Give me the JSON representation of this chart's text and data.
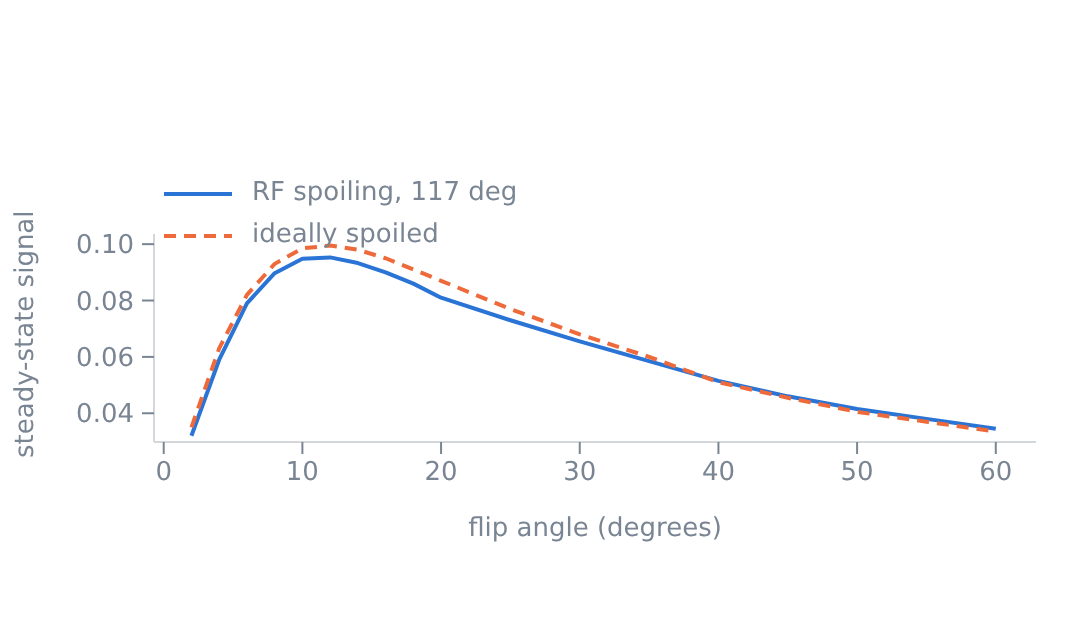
{
  "chart_data": {
    "type": "line",
    "xlabel": "flip angle (degrees)",
    "ylabel": "steady-state signal",
    "x": [
      2,
      4,
      6,
      8,
      10,
      12,
      14,
      16,
      18,
      20,
      25,
      30,
      35,
      40,
      45,
      50,
      55,
      60
    ],
    "series": [
      {
        "name": "RF spoiling, 117 deg",
        "color": "#2a74d6",
        "line_style": "solid",
        "values": [
          0.032,
          0.059,
          0.079,
          0.0897,
          0.0948,
          0.0953,
          0.0933,
          0.09,
          0.086,
          0.081,
          0.073,
          0.0655,
          0.0585,
          0.0515,
          0.046,
          0.0415,
          0.038,
          0.0345
        ]
      },
      {
        "name": "ideally spoiled",
        "color": "#ef6a3a",
        "line_style": "dashed",
        "values": [
          0.035,
          0.063,
          0.082,
          0.093,
          0.0985,
          0.0995,
          0.098,
          0.095,
          0.091,
          0.087,
          0.077,
          0.068,
          0.06,
          0.051,
          0.0455,
          0.0405,
          0.037,
          0.0335
        ]
      }
    ],
    "xlim": [
      -0.7,
      62.9
    ],
    "xticks": [
      0,
      10,
      20,
      30,
      40,
      50,
      60
    ],
    "ylim": [
      0.0298,
      0.1036
    ],
    "yticks": [
      {
        "value": 0.04,
        "label": "0.04"
      },
      {
        "value": 0.06,
        "label": "0.06"
      },
      {
        "value": 0.08,
        "label": "0.08"
      },
      {
        "value": 0.1,
        "label": "0.10"
      }
    ],
    "legend": "top left",
    "grid": false,
    "marker": "none"
  }
}
